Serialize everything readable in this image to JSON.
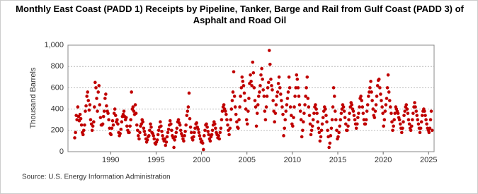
{
  "chart_data": {
    "type": "scatter",
    "title": "Monthly East Coast (PADD 1) Receipts by Pipeline, Tanker, Barge and Rail from Gulf Coast (PADD 3) of Asphalt and Road Oil",
    "ylabel": "Thousand Barrels",
    "source": "Source: U.S. Energy Information Administration",
    "color": "#c00000",
    "grid": true,
    "xlim": [
      1985.3,
      2025.6
    ],
    "xticks": [
      1990,
      1995,
      2000,
      2005,
      2010,
      2015,
      2020,
      2025
    ],
    "ylim": [
      0,
      1000
    ],
    "yticks": [
      0,
      200,
      400,
      600,
      800,
      {
        "value": 1000,
        "label": "1,000"
      }
    ],
    "x": [
      1986.04,
      1986.13,
      1986.21,
      1986.29,
      1986.38,
      1986.46,
      1986.54,
      1986.63,
      1986.71,
      1986.79,
      1986.88,
      1986.96,
      1987.04,
      1987.13,
      1987.21,
      1987.29,
      1987.38,
      1987.46,
      1987.54,
      1987.63,
      1987.71,
      1987.79,
      1987.88,
      1987.96,
      1988.04,
      1988.13,
      1988.21,
      1988.29,
      1988.38,
      1988.46,
      1988.54,
      1988.63,
      1988.71,
      1988.79,
      1988.88,
      1988.96,
      1989.04,
      1989.13,
      1989.21,
      1989.29,
      1989.38,
      1989.46,
      1989.54,
      1989.63,
      1989.71,
      1989.79,
      1989.88,
      1989.96,
      1990.04,
      1990.13,
      1990.21,
      1990.29,
      1990.38,
      1990.46,
      1990.54,
      1990.63,
      1990.71,
      1990.79,
      1990.88,
      1990.96,
      1991.04,
      1991.13,
      1991.21,
      1991.29,
      1991.38,
      1991.46,
      1991.54,
      1991.63,
      1991.71,
      1991.79,
      1991.88,
      1991.96,
      1992.04,
      1992.13,
      1992.21,
      1992.29,
      1992.38,
      1992.46,
      1992.54,
      1992.63,
      1992.71,
      1992.79,
      1992.88,
      1992.96,
      1993.04,
      1993.13,
      1993.21,
      1993.29,
      1993.38,
      1993.46,
      1993.54,
      1993.63,
      1993.71,
      1993.79,
      1993.88,
      1993.96,
      1994.04,
      1994.13,
      1994.21,
      1994.29,
      1994.38,
      1994.46,
      1994.54,
      1994.63,
      1994.71,
      1994.79,
      1994.88,
      1994.96,
      1995.04,
      1995.13,
      1995.21,
      1995.29,
      1995.38,
      1995.46,
      1995.54,
      1995.63,
      1995.71,
      1995.79,
      1995.88,
      1995.96,
      1996.04,
      1996.13,
      1996.21,
      1996.29,
      1996.38,
      1996.46,
      1996.54,
      1996.63,
      1996.71,
      1996.79,
      1996.88,
      1996.96,
      1997.04,
      1997.13,
      1997.21,
      1997.29,
      1997.38,
      1997.46,
      1997.54,
      1997.63,
      1997.71,
      1997.79,
      1997.88,
      1997.96,
      1998.04,
      1998.13,
      1998.21,
      1998.29,
      1998.38,
      1998.46,
      1998.54,
      1998.63,
      1998.71,
      1998.79,
      1998.88,
      1998.96,
      1999.04,
      1999.13,
      1999.21,
      1999.29,
      1999.38,
      1999.46,
      1999.54,
      1999.63,
      1999.71,
      1999.79,
      1999.88,
      1999.96,
      2000.04,
      2000.13,
      2000.21,
      2000.29,
      2000.38,
      2000.46,
      2000.54,
      2000.63,
      2000.71,
      2000.79,
      2000.88,
      2000.96,
      2001.04,
      2001.13,
      2001.21,
      2001.29,
      2001.38,
      2001.46,
      2001.54,
      2001.63,
      2001.71,
      2001.79,
      2001.88,
      2001.96,
      2002.04,
      2002.13,
      2002.21,
      2002.29,
      2002.38,
      2002.46,
      2002.54,
      2002.63,
      2002.71,
      2002.79,
      2002.88,
      2002.96,
      2003.04,
      2003.13,
      2003.21,
      2003.29,
      2003.38,
      2003.46,
      2003.54,
      2003.63,
      2003.71,
      2003.79,
      2003.88,
      2003.96,
      2004.04,
      2004.13,
      2004.21,
      2004.29,
      2004.38,
      2004.46,
      2004.54,
      2004.63,
      2004.71,
      2004.79,
      2004.88,
      2004.96,
      2005.04,
      2005.13,
      2005.21,
      2005.29,
      2005.38,
      2005.46,
      2005.54,
      2005.63,
      2005.71,
      2005.79,
      2005.88,
      2005.96,
      2006.04,
      2006.13,
      2006.21,
      2006.29,
      2006.38,
      2006.46,
      2006.54,
      2006.63,
      2006.71,
      2006.79,
      2006.88,
      2006.96,
      2007.04,
      2007.13,
      2007.21,
      2007.29,
      2007.38,
      2007.46,
      2007.54,
      2007.63,
      2007.71,
      2007.79,
      2007.88,
      2007.96,
      2008.04,
      2008.13,
      2008.21,
      2008.29,
      2008.38,
      2008.46,
      2008.54,
      2008.63,
      2008.71,
      2008.79,
      2008.88,
      2008.96,
      2009.04,
      2009.13,
      2009.21,
      2009.29,
      2009.38,
      2009.46,
      2009.54,
      2009.63,
      2009.71,
      2009.79,
      2009.88,
      2009.96,
      2010.04,
      2010.13,
      2010.21,
      2010.29,
      2010.38,
      2010.46,
      2010.54,
      2010.63,
      2010.71,
      2010.79,
      2010.88,
      2010.96,
      2011.04,
      2011.13,
      2011.21,
      2011.29,
      2011.38,
      2011.46,
      2011.54,
      2011.63,
      2011.71,
      2011.79,
      2011.88,
      2011.96,
      2012.04,
      2012.13,
      2012.21,
      2012.29,
      2012.38,
      2012.46,
      2012.54,
      2012.63,
      2012.71,
      2012.79,
      2012.88,
      2012.96,
      2013.04,
      2013.13,
      2013.21,
      2013.29,
      2013.38,
      2013.46,
      2013.54,
      2013.63,
      2013.71,
      2013.79,
      2013.88,
      2013.96,
      2014.04,
      2014.13,
      2014.21,
      2014.29,
      2014.38,
      2014.46,
      2014.54,
      2014.63,
      2014.71,
      2014.79,
      2014.88,
      2014.96,
      2015.04,
      2015.13,
      2015.21,
      2015.29,
      2015.38,
      2015.46,
      2015.54,
      2015.63,
      2015.71,
      2015.79,
      2015.88,
      2015.96,
      2016.04,
      2016.13,
      2016.21,
      2016.29,
      2016.38,
      2016.46,
      2016.54,
      2016.63,
      2016.71,
      2016.79,
      2016.88,
      2016.96,
      2017.04,
      2017.13,
      2017.21,
      2017.29,
      2017.38,
      2017.46,
      2017.54,
      2017.63,
      2017.71,
      2017.79,
      2017.88,
      2017.96,
      2018.04,
      2018.13,
      2018.21,
      2018.29,
      2018.38,
      2018.46,
      2018.54,
      2018.63,
      2018.71,
      2018.79,
      2018.88,
      2018.96,
      2019.04,
      2019.13,
      2019.21,
      2019.29,
      2019.38,
      2019.46,
      2019.54,
      2019.63,
      2019.71,
      2019.79,
      2019.88,
      2019.96,
      2020.04,
      2020.13,
      2020.21,
      2020.29,
      2020.38,
      2020.46,
      2020.54,
      2020.63,
      2020.71,
      2020.79,
      2020.88,
      2020.96,
      2021.04,
      2021.13,
      2021.21,
      2021.29,
      2021.38,
      2021.46,
      2021.54,
      2021.63,
      2021.71,
      2021.79,
      2021.88,
      2021.96,
      2022.04,
      2022.13,
      2022.21,
      2022.29,
      2022.38,
      2022.46,
      2022.54,
      2022.63,
      2022.71,
      2022.79,
      2022.88,
      2022.96,
      2023.04,
      2023.13,
      2023.21,
      2023.29,
      2023.38,
      2023.46,
      2023.54,
      2023.63,
      2023.71,
      2023.79,
      2023.88,
      2023.96,
      2024.04,
      2024.13,
      2024.21,
      2024.29,
      2024.38,
      2024.46,
      2024.54,
      2024.63,
      2024.71,
      2024.79,
      2024.88,
      2024.96,
      2025.04,
      2025.13,
      2025.21,
      2025.29,
      2025.38
    ],
    "values": [
      130,
      180,
      340,
      300,
      420,
      330,
      290,
      350,
      310,
      250,
      180,
      160,
      200,
      250,
      380,
      430,
      520,
      560,
      480,
      390,
      440,
      300,
      260,
      200,
      240,
      280,
      420,
      650,
      600,
      500,
      380,
      560,
      620,
      440,
      320,
      250,
      250,
      260,
      330,
      380,
      500,
      540,
      430,
      380,
      360,
      300,
      220,
      170,
      160,
      220,
      290,
      250,
      360,
      400,
      340,
      280,
      300,
      260,
      180,
      150,
      170,
      210,
      280,
      330,
      350,
      380,
      330,
      300,
      320,
      240,
      200,
      180,
      180,
      240,
      300,
      560,
      400,
      420,
      380,
      350,
      440,
      360,
      250,
      200,
      150,
      120,
      180,
      240,
      260,
      300,
      280,
      220,
      190,
      160,
      120,
      90,
      110,
      140,
      150,
      200,
      260,
      230,
      180,
      170,
      150,
      120,
      80,
      70,
      90,
      110,
      160,
      200,
      230,
      280,
      240,
      190,
      150,
      120,
      100,
      120,
      60,
      90,
      140,
      180,
      210,
      250,
      290,
      260,
      200,
      150,
      130,
      40,
      110,
      140,
      180,
      220,
      280,
      300,
      270,
      250,
      200,
      170,
      150,
      120,
      100,
      150,
      190,
      250,
      340,
      380,
      420,
      550,
      310,
      230,
      180,
      130,
      110,
      140,
      180,
      220,
      260,
      270,
      230,
      210,
      180,
      150,
      120,
      90,
      100,
      80,
      20,
      150,
      200,
      250,
      260,
      230,
      190,
      160,
      120,
      100,
      140,
      160,
      200,
      250,
      280,
      260,
      220,
      180,
      160,
      130,
      150,
      120,
      180,
      220,
      300,
      380,
      420,
      440,
      400,
      380,
      350,
      300,
      250,
      200,
      160,
      220,
      300,
      400,
      480,
      560,
      750,
      520,
      420,
      350,
      280,
      230,
      220,
      300,
      420,
      520,
      600,
      700,
      660,
      620,
      550,
      480,
      400,
      300,
      260,
      380,
      500,
      640,
      720,
      660,
      620,
      840,
      740,
      600,
      480,
      420,
      240,
      360,
      440,
      520,
      560,
      620,
      720,
      780,
      680,
      580,
      520,
      380,
      300,
      420,
      520,
      600,
      650,
      950,
      820,
      680,
      620,
      580,
      480,
      380,
      280,
      360,
      440,
      520,
      560,
      640,
      700,
      600,
      540,
      480,
      420,
      350,
      150,
      220,
      300,
      380,
      440,
      500,
      560,
      700,
      600,
      420,
      340,
      260,
      240,
      320,
      420,
      520,
      600,
      720,
      680,
      600,
      520,
      440,
      380,
      300,
      140,
      200,
      280,
      360,
      440,
      520,
      600,
      700,
      500,
      420,
      340,
      260,
      160,
      200,
      240,
      300,
      360,
      420,
      440,
      400,
      360,
      280,
      220,
      180,
      100,
      140,
      200,
      260,
      320,
      380,
      420,
      400,
      340,
      280,
      200,
      140,
      40,
      80,
      150,
      220,
      300,
      420,
      600,
      520,
      380,
      300,
      200,
      120,
      140,
      180,
      240,
      300,
      360,
      400,
      440,
      420,
      380,
      320,
      260,
      200,
      200,
      240,
      300,
      360,
      420,
      460,
      440,
      400,
      380,
      340,
      300,
      260,
      220,
      260,
      320,
      360,
      420,
      500,
      520,
      480,
      420,
      360,
      300,
      260,
      260,
      300,
      380,
      440,
      520,
      560,
      600,
      660,
      560,
      480,
      400,
      340,
      320,
      380,
      440,
      520,
      620,
      670,
      680,
      600,
      540,
      480,
      420,
      360,
      240,
      300,
      380,
      440,
      500,
      600,
      720,
      560,
      480,
      420,
      360,
      280,
      200,
      240,
      300,
      360,
      420,
      400,
      380,
      360,
      320,
      300,
      260,
      220,
      180,
      220,
      280,
      340,
      380,
      420,
      440,
      400,
      360,
      300,
      260,
      220,
      200,
      240,
      300,
      360,
      420,
      460,
      420,
      380,
      340,
      300,
      260,
      220,
      180,
      220,
      280,
      340,
      380,
      400,
      380,
      340,
      300,
      260,
      220,
      200,
      180,
      220,
      300,
      380,
      200
    ]
  }
}
